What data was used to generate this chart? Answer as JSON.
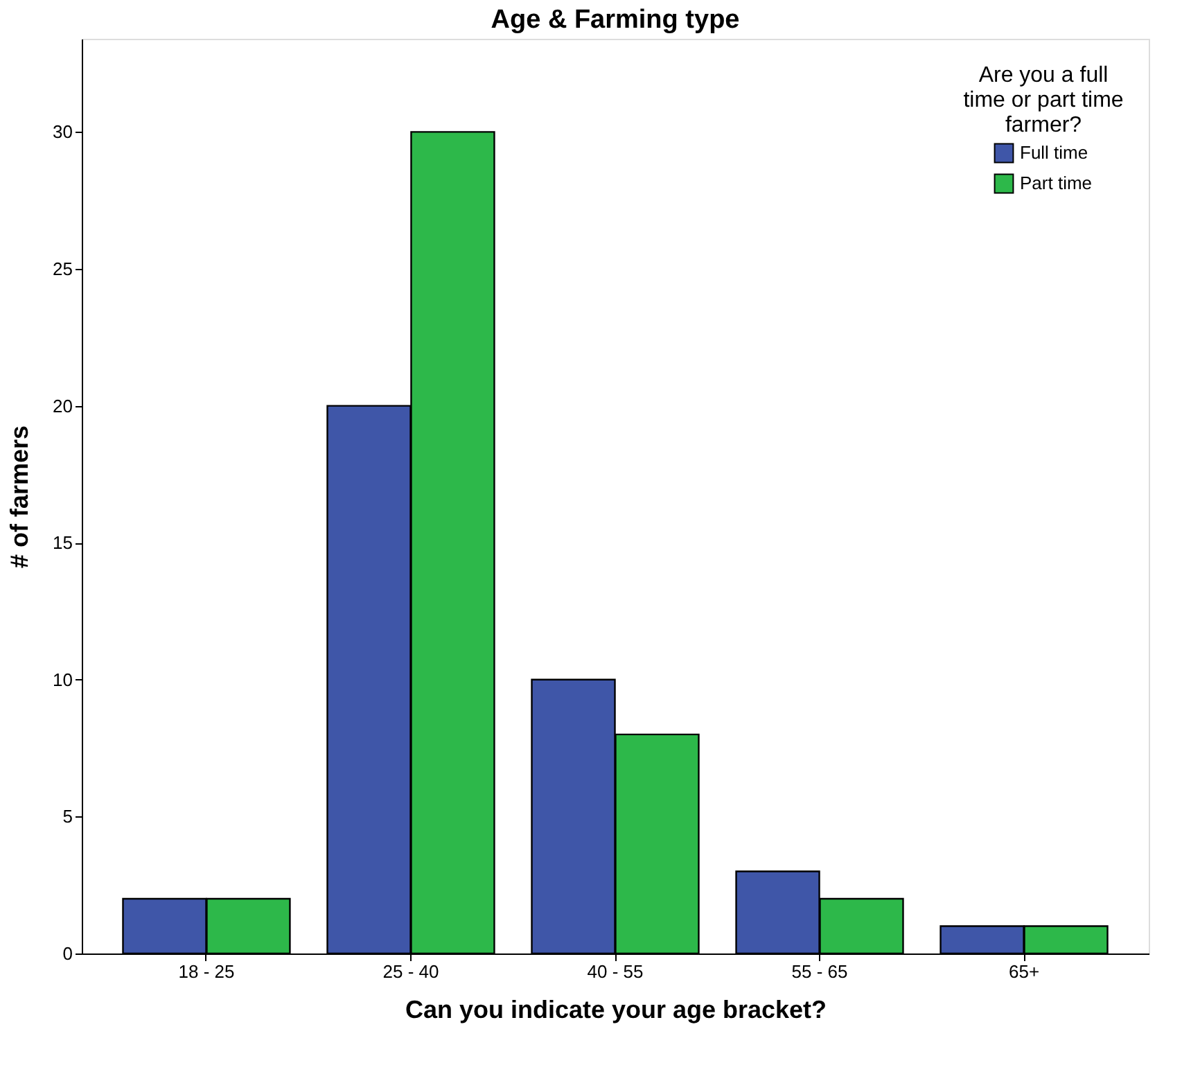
{
  "chart_data": {
    "type": "bar",
    "title": "Age & Farming type",
    "xlabel": "Can you indicate your age bracket?",
    "ylabel": "# of farmers",
    "legend_title": "Are you a full time or part time farmer?",
    "categories": [
      "18 - 25",
      "25 - 40",
      "40 - 55",
      "55 - 65",
      "65+"
    ],
    "series": [
      {
        "name": "Full time",
        "color": "#3f56a8",
        "values": [
          2,
          20,
          10,
          3,
          1
        ]
      },
      {
        "name": "Part time",
        "color": "#2db84a",
        "values": [
          2,
          30,
          8,
          2,
          1
        ]
      }
    ],
    "ylim": [
      0,
      33.4
    ],
    "yticks": [
      0,
      5,
      10,
      15,
      20,
      25,
      30
    ],
    "grid": false,
    "legend": "top right"
  }
}
